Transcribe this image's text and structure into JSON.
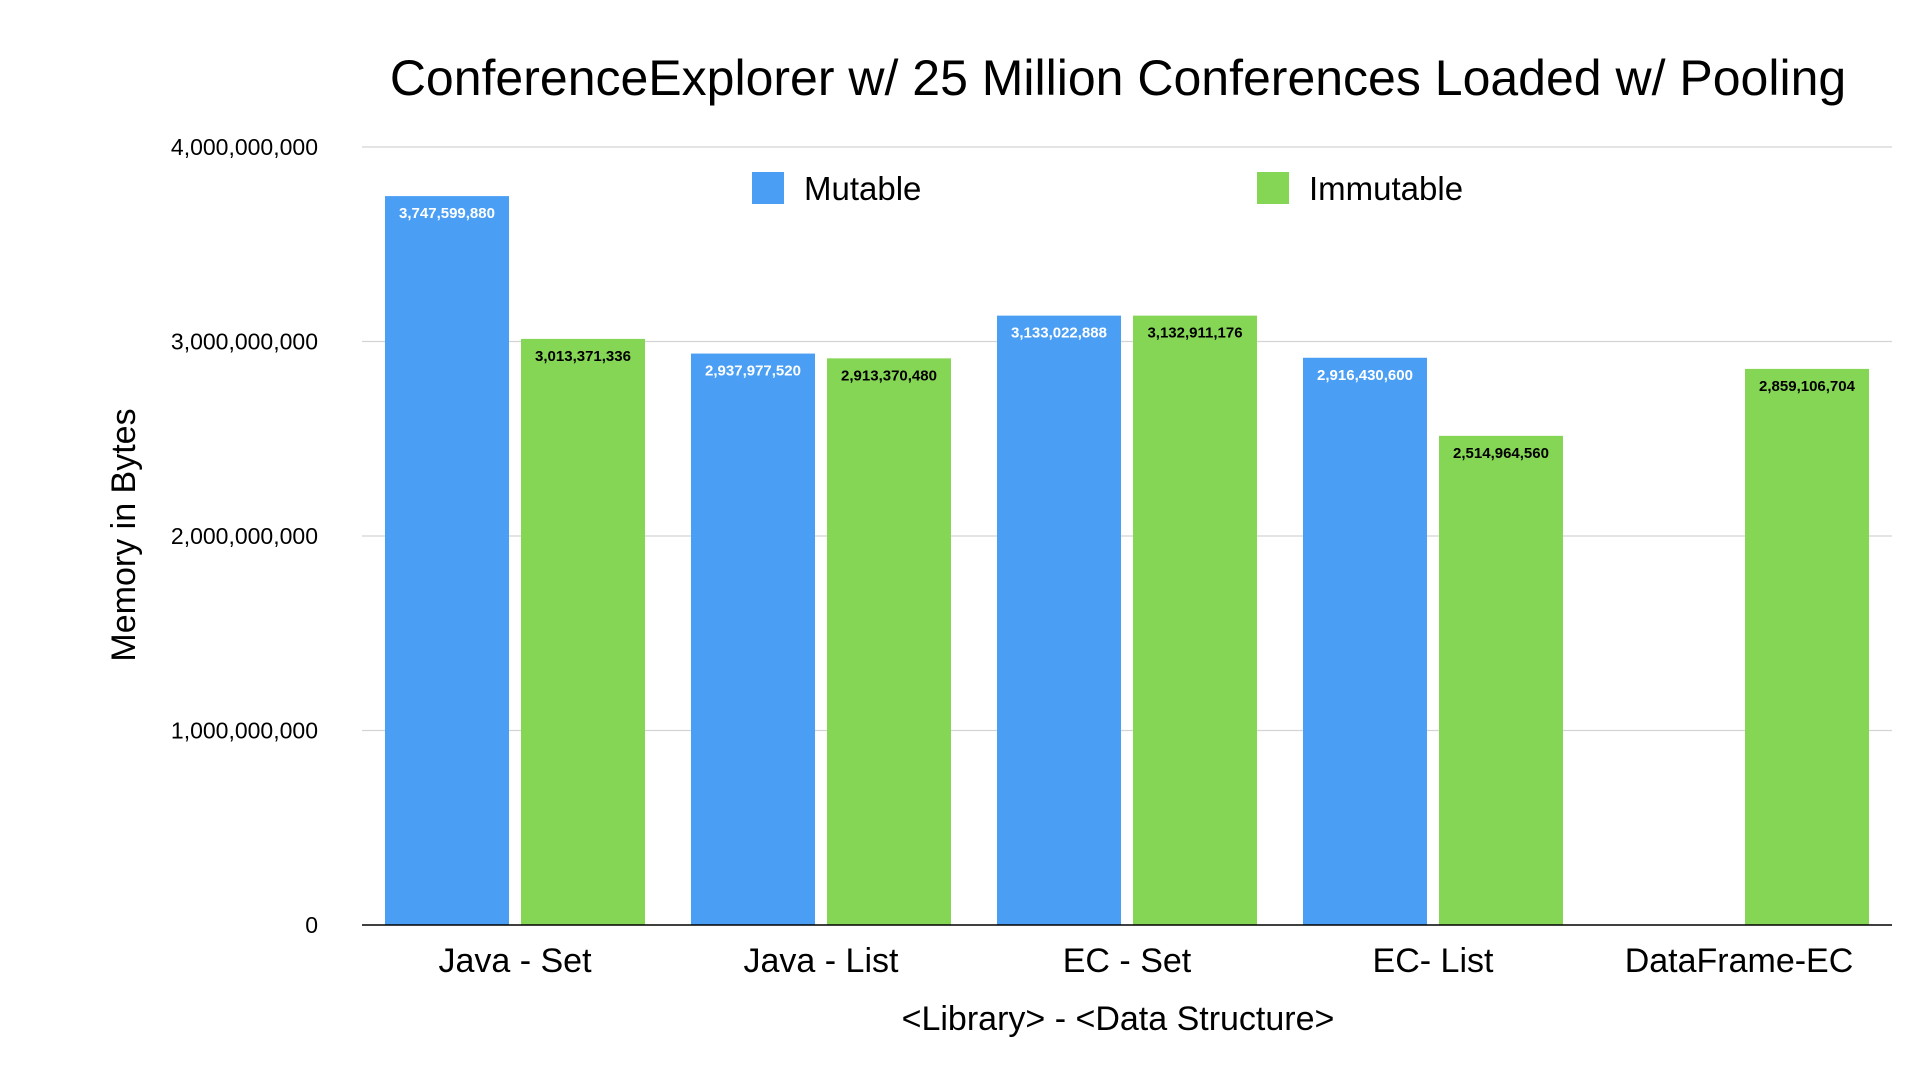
{
  "chart_data": {
    "type": "bar",
    "title": "ConferenceExplorer w/ 25 Million Conferences Loaded w/ Pooling",
    "xlabel": "<Library> - <Data Structure>",
    "ylabel": "Memory in Bytes",
    "ylim": [
      0,
      4000000000
    ],
    "yticks": [
      0,
      1000000000,
      2000000000,
      3000000000,
      4000000000
    ],
    "ytick_labels": [
      "0",
      "1,000,000,000",
      "2,000,000,000",
      "3,000,000,000",
      "4,000,000,000"
    ],
    "grid": true,
    "legend_position": "top",
    "categories": [
      "Java - Set",
      "Java - List",
      "EC - Set",
      "EC- List",
      "DataFrame-EC"
    ],
    "series": [
      {
        "name": "Mutable",
        "color": "#4a9ff5",
        "label_color": "#ffffff",
        "values": [
          3747599880,
          2937977520,
          3133022888,
          2916430600,
          null
        ],
        "labels": [
          "3,747,599,880",
          "2,937,977,520",
          "3,133,022,888",
          "2,916,430,600",
          ""
        ]
      },
      {
        "name": "Immutable",
        "color": "#84d654",
        "label_color": "#000000",
        "values": [
          3013371336,
          2913370480,
          3132911176,
          2514964560,
          2859106704
        ],
        "labels": [
          "3,013,371,336",
          "2,913,370,480",
          "3,132,911,176",
          "2,514,964,560",
          "2,859,106,704"
        ]
      }
    ]
  }
}
